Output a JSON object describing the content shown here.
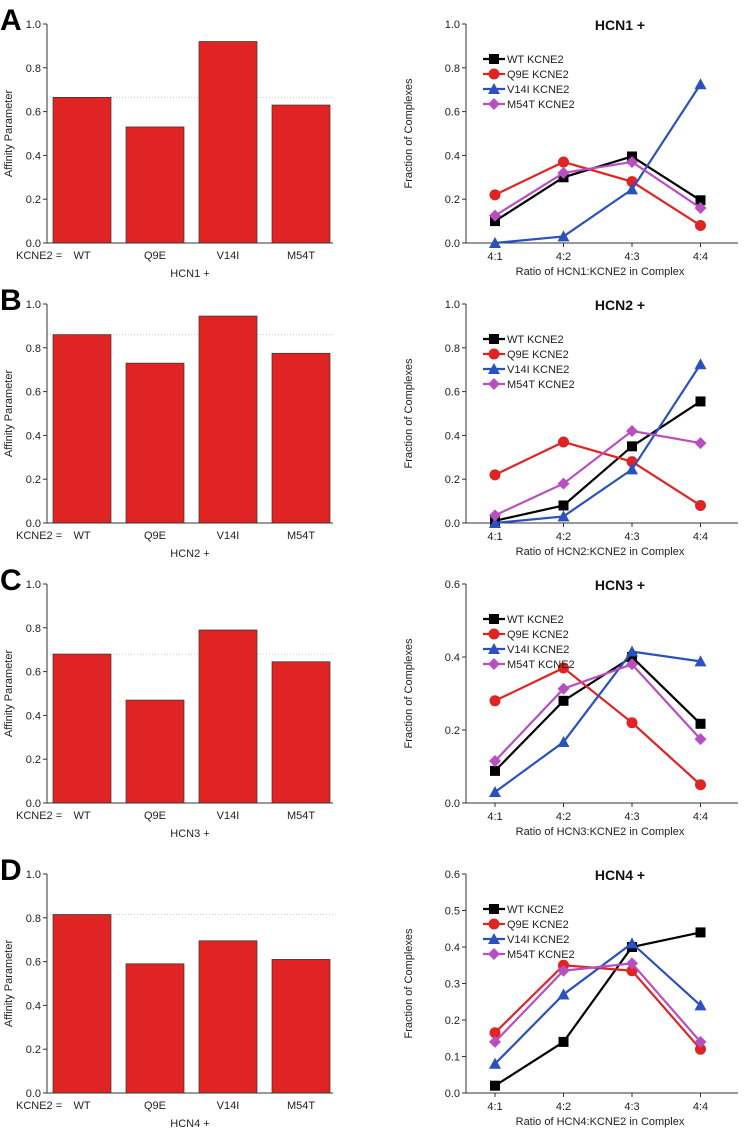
{
  "chart_data": [
    {
      "panel": "A",
      "type": "bar",
      "categories": [
        "WT",
        "Q9E",
        "V14I",
        "M54T"
      ],
      "values": [
        0.665,
        0.53,
        0.92,
        0.63
      ],
      "ylabel": "Affinity Parameter",
      "xprefix": "KCNE2 =",
      "xlabel": "HCN1 +",
      "ylim": [
        0,
        1.0
      ],
      "yticks": [
        "0.0",
        "0.2",
        "0.4",
        "0.6",
        "0.8",
        "1.0"
      ],
      "color": "#e02424"
    },
    {
      "panel": "A",
      "type": "line",
      "title": "HCN1 +",
      "categories": [
        "4:1",
        "4:2",
        "4:3",
        "4:4"
      ],
      "xlabel": "Ratio of HCN1:KCNE2 in Complex",
      "ylabel": "Fraction of Complexes",
      "ylim": [
        0,
        1.0
      ],
      "yticks": [
        "0.0",
        "0.2",
        "0.4",
        "0.6",
        "0.8",
        "1.0"
      ],
      "legend": "top-left",
      "series": [
        {
          "name": "WT KCNE2",
          "color": "#000000",
          "marker": "square",
          "values": [
            0.1,
            0.3,
            0.395,
            0.195
          ]
        },
        {
          "name": "Q9E KCNE2",
          "color": "#e02424",
          "marker": "circle",
          "values": [
            0.22,
            0.37,
            0.28,
            0.08
          ]
        },
        {
          "name": "V14I KCNE2",
          "color": "#2a52be",
          "marker": "triangle",
          "values": [
            0.0,
            0.03,
            0.245,
            0.725
          ]
        },
        {
          "name": "M54T KCNE2",
          "color": "#b84fc0",
          "marker": "diamond",
          "values": [
            0.125,
            0.32,
            0.37,
            0.16
          ]
        }
      ]
    },
    {
      "panel": "B",
      "type": "bar",
      "categories": [
        "WT",
        "Q9E",
        "V14I",
        "M54T"
      ],
      "values": [
        0.86,
        0.73,
        0.945,
        0.775
      ],
      "ylabel": "Affinity Parameter",
      "xprefix": "KCNE2 =",
      "xlabel": "HCN2 +",
      "ylim": [
        0,
        1.0
      ],
      "yticks": [
        "0.0",
        "0.2",
        "0.4",
        "0.6",
        "0.8",
        "1.0"
      ],
      "color": "#e02424"
    },
    {
      "panel": "B",
      "type": "line",
      "title": "HCN2 +",
      "categories": [
        "4:1",
        "4:2",
        "4:3",
        "4:4"
      ],
      "xlabel": "Ratio of HCN2:KCNE2 in Complex",
      "ylabel": "Fraction of Complexes",
      "ylim": [
        0,
        1.0
      ],
      "yticks": [
        "0.0",
        "0.2",
        "0.4",
        "0.6",
        "0.8",
        "1.0"
      ],
      "legend": "top-left",
      "series": [
        {
          "name": "WT KCNE2",
          "color": "#000000",
          "marker": "square",
          "values": [
            0.01,
            0.08,
            0.35,
            0.555
          ]
        },
        {
          "name": "Q9E KCNE2",
          "color": "#e02424",
          "marker": "circle",
          "values": [
            0.22,
            0.37,
            0.28,
            0.08
          ]
        },
        {
          "name": "V14I KCNE2",
          "color": "#2a52be",
          "marker": "triangle",
          "values": [
            0.0,
            0.03,
            0.245,
            0.725
          ]
        },
        {
          "name": "M54T KCNE2",
          "color": "#b84fc0",
          "marker": "diamond",
          "values": [
            0.035,
            0.18,
            0.42,
            0.365
          ]
        }
      ]
    },
    {
      "panel": "C",
      "type": "bar",
      "categories": [
        "WT",
        "Q9E",
        "V14I",
        "M54T"
      ],
      "values": [
        0.68,
        0.47,
        0.79,
        0.645
      ],
      "ylabel": "Affinity Parameter",
      "xprefix": "KCNE2 =",
      "xlabel": "HCN3 +",
      "ylim": [
        0,
        1.0
      ],
      "yticks": [
        "0.0",
        "0.2",
        "0.4",
        "0.6",
        "0.8",
        "1.0"
      ],
      "color": "#e02424"
    },
    {
      "panel": "C",
      "type": "line",
      "title": "HCN3 +",
      "categories": [
        "4:1",
        "4:2",
        "4:3",
        "4:4"
      ],
      "xlabel": "Ratio of HCN3:KCNE2 in Complex",
      "ylabel": "Fraction of Complexes",
      "ylim": [
        0,
        0.6
      ],
      "yticks": [
        "0.0",
        "0.2",
        "0.4",
        "0.6"
      ],
      "legend": "top-left",
      "series": [
        {
          "name": "WT KCNE2",
          "color": "#000000",
          "marker": "square",
          "values": [
            0.088,
            0.28,
            0.4,
            0.217
          ]
        },
        {
          "name": "Q9E KCNE2",
          "color": "#e02424",
          "marker": "circle",
          "values": [
            0.28,
            0.37,
            0.22,
            0.05
          ]
        },
        {
          "name": "V14I KCNE2",
          "color": "#2a52be",
          "marker": "triangle",
          "values": [
            0.03,
            0.167,
            0.415,
            0.388
          ]
        },
        {
          "name": "M54T KCNE2",
          "color": "#b84fc0",
          "marker": "diamond",
          "values": [
            0.115,
            0.313,
            0.38,
            0.175
          ]
        }
      ]
    },
    {
      "panel": "D",
      "type": "bar",
      "categories": [
        "WT",
        "Q9E",
        "V14I",
        "M54T"
      ],
      "values": [
        0.815,
        0.59,
        0.695,
        0.61
      ],
      "ylabel": "Affinity Parameter",
      "xprefix": "KCNE2 =",
      "xlabel": "HCN4 +",
      "ylim": [
        0,
        1.0
      ],
      "yticks": [
        "0.0",
        "0.2",
        "0.4",
        "0.6",
        "0.8",
        "1.0"
      ],
      "color": "#e02424"
    },
    {
      "panel": "D",
      "type": "line",
      "title": "HCN4 +",
      "categories": [
        "4:1",
        "4:2",
        "4:3",
        "4:4"
      ],
      "xlabel": "Ratio of HCN4:KCNE2 in Complex",
      "ylabel": "Fraction of Complexes",
      "ylim": [
        0,
        0.6
      ],
      "yticks": [
        "0.0",
        "0.1",
        "0.2",
        "0.3",
        "0.4",
        "0.5",
        "0.6"
      ],
      "legend": "top-left",
      "series": [
        {
          "name": "WT KCNE2",
          "color": "#000000",
          "marker": "square",
          "values": [
            0.02,
            0.14,
            0.4,
            0.44
          ]
        },
        {
          "name": "Q9E KCNE2",
          "color": "#e02424",
          "marker": "circle",
          "values": [
            0.165,
            0.35,
            0.335,
            0.12
          ]
        },
        {
          "name": "V14I KCNE2",
          "color": "#2a52be",
          "marker": "triangle",
          "values": [
            0.08,
            0.27,
            0.41,
            0.24
          ]
        },
        {
          "name": "M54T KCNE2",
          "color": "#b84fc0",
          "marker": "diamond",
          "values": [
            0.14,
            0.335,
            0.355,
            0.14
          ]
        }
      ]
    }
  ]
}
